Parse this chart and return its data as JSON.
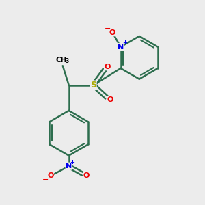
{
  "background_color": "#ececec",
  "bond_color": "#2d6e4e",
  "bond_width": 1.8,
  "S_color": "#aaaa00",
  "N_color": "#0000ee",
  "O_color": "#ee0000",
  "fig_width": 3.0,
  "fig_height": 3.0,
  "dpi": 100,
  "xlim": [
    0,
    10
  ],
  "ylim": [
    0,
    10
  ]
}
